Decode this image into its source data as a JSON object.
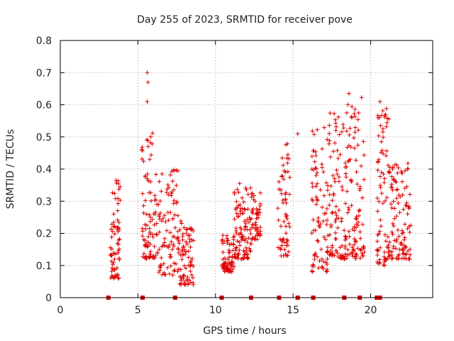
{
  "chart_data": {
    "type": "scatter",
    "title": "Day 255 of 2023, SRMTID for receiver pove",
    "xlabel": "GPS time / hours",
    "ylabel": "SRMTID / TECUs",
    "xlim": [
      0,
      24
    ],
    "ylim": [
      0,
      0.8
    ],
    "xticks": [
      0,
      5,
      10,
      15,
      20
    ],
    "xtick_labels": [
      "0",
      "5",
      "10",
      "15",
      "20"
    ],
    "yticks": [
      0,
      0.1,
      0.2,
      0.3,
      0.4,
      0.5,
      0.6,
      0.7,
      0.8
    ],
    "ytick_labels": [
      "0",
      "0.1",
      "0.2",
      "0.3",
      "0.4",
      "0.5",
      "0.6",
      "0.7",
      "0.8"
    ],
    "grid": true,
    "marker": "+",
    "color": "#dd0000",
    "clusters": [
      {
        "x": [
          3.2,
          3.9
        ],
        "y": [
          0.06,
          0.37
        ],
        "n": 70
      },
      {
        "x": [
          5.2,
          6.3
        ],
        "y": [
          0.12,
          0.52
        ],
        "n": 90
      },
      {
        "x": [
          6.3,
          7.6
        ],
        "y": [
          0.07,
          0.4
        ],
        "n": 90
      },
      {
        "x": [
          7.6,
          8.6
        ],
        "y": [
          0.04,
          0.24
        ],
        "n": 80
      },
      {
        "x": [
          10.4,
          11.2
        ],
        "y": [
          0.08,
          0.2
        ],
        "n": 70
      },
      {
        "x": [
          11.2,
          12.3
        ],
        "y": [
          0.12,
          0.36
        ],
        "n": 100
      },
      {
        "x": [
          12.3,
          12.9
        ],
        "y": [
          0.18,
          0.34
        ],
        "n": 50
      },
      {
        "x": [
          14.0,
          14.8
        ],
        "y": [
          0.13,
          0.48
        ],
        "n": 60
      },
      {
        "x": [
          16.2,
          17.2
        ],
        "y": [
          0.08,
          0.53
        ],
        "n": 80
      },
      {
        "x": [
          17.2,
          18.4
        ],
        "y": [
          0.12,
          0.6
        ],
        "n": 100
      },
      {
        "x": [
          18.4,
          19.6
        ],
        "y": [
          0.12,
          0.63
        ],
        "n": 100
      },
      {
        "x": [
          20.4,
          21.2
        ],
        "y": [
          0.1,
          0.61
        ],
        "n": 80
      },
      {
        "x": [
          21.2,
          22.6
        ],
        "y": [
          0.12,
          0.42
        ],
        "n": 110
      }
    ],
    "highlights": [
      {
        "x": 5.6,
        "y": 0.7
      },
      {
        "x": 5.65,
        "y": 0.67
      },
      {
        "x": 5.6,
        "y": 0.61
      },
      {
        "x": 18.6,
        "y": 0.635
      },
      {
        "x": 15.3,
        "y": 0.51
      },
      {
        "x": 20.6,
        "y": 0.61
      }
    ],
    "bottom_markers_x": [
      3.1,
      5.3,
      7.4,
      10.4,
      12.3,
      14.1,
      15.3,
      16.3,
      18.3,
      19.3,
      20.4,
      20.5,
      20.6
    ]
  }
}
